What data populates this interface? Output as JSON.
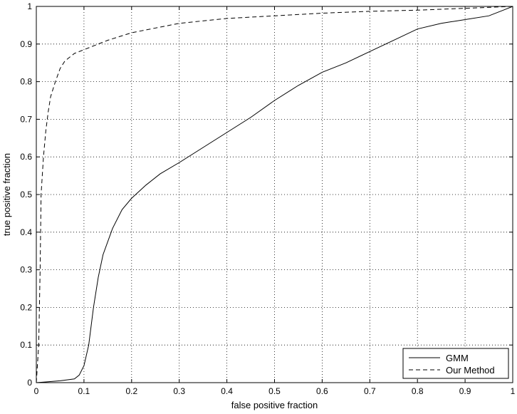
{
  "chart_data": {
    "type": "line",
    "xlabel": "false positive fraction",
    "ylabel": "true positive fraction",
    "xlim": [
      0,
      1
    ],
    "ylim": [
      0,
      1
    ],
    "x_ticks": [
      "0",
      "0.1",
      "0.2",
      "0.3",
      "0.4",
      "0.5",
      "0.6",
      "0.7",
      "0.8",
      "0.9",
      "1"
    ],
    "y_ticks": [
      "0",
      "0.1",
      "0.2",
      "0.3",
      "0.4",
      "0.5",
      "0.6",
      "0.7",
      "0.8",
      "0.9",
      "1"
    ],
    "grid": true,
    "legend_position": "bottom-right",
    "series": [
      {
        "name": "GMM",
        "line_style": "solid",
        "color": "#000000",
        "x": [
          0,
          0.02,
          0.05,
          0.08,
          0.09,
          0.1,
          0.11,
          0.12,
          0.13,
          0.14,
          0.16,
          0.18,
          0.2,
          0.23,
          0.26,
          0.3,
          0.35,
          0.4,
          0.45,
          0.5,
          0.55,
          0.6,
          0.65,
          0.7,
          0.75,
          0.8,
          0.85,
          0.9,
          0.95,
          0.98,
          1.0
        ],
        "y": [
          0,
          0.002,
          0.005,
          0.01,
          0.02,
          0.045,
          0.1,
          0.2,
          0.28,
          0.34,
          0.41,
          0.46,
          0.49,
          0.525,
          0.555,
          0.585,
          0.625,
          0.665,
          0.705,
          0.75,
          0.79,
          0.825,
          0.85,
          0.88,
          0.91,
          0.94,
          0.955,
          0.965,
          0.975,
          0.99,
          1.0
        ]
      },
      {
        "name": "Our Method",
        "line_style": "dashed",
        "color": "#000000",
        "x": [
          0,
          0.005,
          0.008,
          0.01,
          0.015,
          0.02,
          0.025,
          0.03,
          0.04,
          0.05,
          0.06,
          0.08,
          0.1,
          0.15,
          0.2,
          0.3,
          0.4,
          0.5,
          0.6,
          0.7,
          0.8,
          0.9,
          1.0
        ],
        "y": [
          0,
          0.1,
          0.3,
          0.5,
          0.6,
          0.67,
          0.72,
          0.76,
          0.8,
          0.835,
          0.855,
          0.875,
          0.885,
          0.91,
          0.93,
          0.955,
          0.968,
          0.975,
          0.982,
          0.987,
          0.99,
          0.995,
          1.0
        ]
      }
    ]
  }
}
